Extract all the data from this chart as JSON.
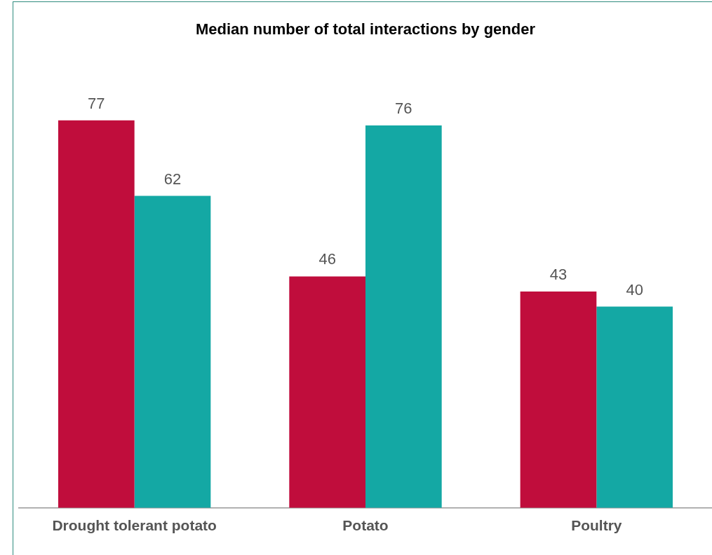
{
  "chart_data": {
    "type": "bar",
    "title": "Median number of total interactions by gender",
    "categories": [
      "Drought tolerant potato",
      "Potato",
      "Poultry"
    ],
    "series": [
      {
        "color": "#c00d3c",
        "values": [
          77,
          46,
          43
        ]
      },
      {
        "color": "#14a8a4",
        "values": [
          62,
          76,
          40
        ]
      }
    ],
    "data_labels": true
  }
}
